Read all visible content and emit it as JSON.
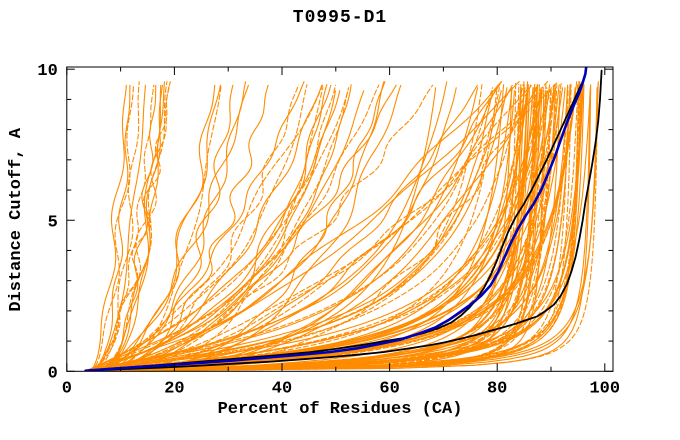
{
  "chart_data": {
    "type": "line",
    "title": "T0995-D1",
    "xlabel": "Percent of Residues (CA)",
    "ylabel": "Distance Cutoff, A",
    "xlim": [
      0,
      101.5
    ],
    "ylim": [
      0,
      10.07
    ],
    "x_ticks_major": [
      0,
      20,
      40,
      60,
      80,
      100
    ],
    "x_ticks_minor": [
      10,
      30,
      50,
      70,
      90
    ],
    "y_ticks_major": [
      0,
      5,
      10
    ],
    "y_ticks_minor": [
      1,
      2,
      3,
      4,
      6,
      7,
      8,
      9
    ],
    "grid": false,
    "legend": "none",
    "tick_style": "inside-mirrored",
    "colors": {
      "ensemble": "#ff8c00",
      "model_navy": "#0000bb",
      "model_black": "#000000",
      "axis": "#000000",
      "background": "#ffffff"
    },
    "series": [
      {
        "name": "highlighted-model-navy",
        "color": "#0000bb",
        "width": 2.6,
        "points": [
          [
            3.5,
            0.02
          ],
          [
            8,
            0.08
          ],
          [
            13,
            0.14
          ],
          [
            19,
            0.21
          ],
          [
            25,
            0.28
          ],
          [
            31,
            0.36
          ],
          [
            37,
            0.45
          ],
          [
            43,
            0.54
          ],
          [
            49,
            0.64
          ],
          [
            54,
            0.76
          ],
          [
            58,
            0.9
          ],
          [
            62,
            1.05
          ],
          [
            65.5,
            1.25
          ],
          [
            68.5,
            1.45
          ],
          [
            71,
            1.7
          ],
          [
            73,
            1.95
          ],
          [
            75,
            2.2
          ],
          [
            77,
            2.5
          ],
          [
            78.8,
            2.85
          ],
          [
            80.2,
            3.3
          ],
          [
            81.3,
            3.75
          ],
          [
            82.4,
            4.2
          ],
          [
            83.8,
            4.7
          ],
          [
            85.3,
            5.15
          ],
          [
            86.8,
            5.55
          ],
          [
            88.3,
            6.05
          ],
          [
            89.6,
            6.6
          ],
          [
            90.7,
            7.1
          ],
          [
            91.7,
            7.6
          ],
          [
            92.9,
            8.2
          ],
          [
            94.1,
            8.75
          ],
          [
            95.2,
            9.2
          ],
          [
            95.9,
            9.55
          ],
          [
            96.4,
            9.85
          ],
          [
            96.55,
            10.07
          ]
        ]
      },
      {
        "name": "highlighted-model-black-1",
        "color": "#000000",
        "width": 1.8,
        "points": [
          [
            3.5,
            0.02
          ],
          [
            9,
            0.1
          ],
          [
            15,
            0.18
          ],
          [
            21,
            0.26
          ],
          [
            27,
            0.35
          ],
          [
            33,
            0.44
          ],
          [
            39,
            0.53
          ],
          [
            45,
            0.63
          ],
          [
            50,
            0.74
          ],
          [
            54.5,
            0.86
          ],
          [
            58.5,
            0.98
          ],
          [
            62.5,
            1.1
          ],
          [
            66,
            1.25
          ],
          [
            69,
            1.42
          ],
          [
            71.5,
            1.62
          ],
          [
            73.3,
            1.85
          ],
          [
            74.8,
            2.1
          ],
          [
            76.2,
            2.4
          ],
          [
            77.5,
            2.75
          ],
          [
            78.7,
            3.15
          ],
          [
            79.8,
            3.6
          ],
          [
            80.9,
            4.1
          ],
          [
            82,
            4.6
          ],
          [
            83.4,
            5.1
          ],
          [
            85,
            5.55
          ],
          [
            86.4,
            6.0
          ],
          [
            87.8,
            6.5
          ],
          [
            89.2,
            7.0
          ],
          [
            90.5,
            7.5
          ],
          [
            91.8,
            8.0
          ],
          [
            93.2,
            8.55
          ],
          [
            94.5,
            9.05
          ],
          [
            95.5,
            9.45
          ],
          [
            96,
            9.62
          ]
        ]
      },
      {
        "name": "highlighted-model-black-2",
        "color": "#000000",
        "width": 1.8,
        "points": [
          [
            3.5,
            0.02
          ],
          [
            10,
            0.07
          ],
          [
            17,
            0.12
          ],
          [
            24,
            0.18
          ],
          [
            31,
            0.25
          ],
          [
            38,
            0.32
          ],
          [
            44,
            0.4
          ],
          [
            49,
            0.47
          ],
          [
            54,
            0.55
          ],
          [
            59,
            0.64
          ],
          [
            63,
            0.74
          ],
          [
            67,
            0.85
          ],
          [
            70,
            0.95
          ],
          [
            73,
            1.07
          ],
          [
            76,
            1.2
          ],
          [
            78.5,
            1.33
          ],
          [
            81,
            1.45
          ],
          [
            83.5,
            1.58
          ],
          [
            85.5,
            1.7
          ],
          [
            87.5,
            1.82
          ],
          [
            89,
            2.0
          ],
          [
            90.5,
            2.2
          ],
          [
            91.8,
            2.5
          ],
          [
            93,
            2.9
          ],
          [
            93.8,
            3.3
          ],
          [
            94.6,
            3.8
          ],
          [
            95.3,
            4.4
          ],
          [
            95.9,
            5.0
          ],
          [
            96.4,
            5.6
          ],
          [
            97,
            6.2
          ],
          [
            97.7,
            6.9
          ],
          [
            98.3,
            7.6
          ],
          [
            98.8,
            8.3
          ],
          [
            99.1,
            9.0
          ],
          [
            99.3,
            9.6
          ],
          [
            99.4,
            9.95
          ]
        ]
      }
    ],
    "ensemble": {
      "description": "orange spaghetti of all predicted model curves, approximated procedurally",
      "color": "#ff8c00",
      "line_width": 1.1,
      "seed": 7,
      "x_start_range": [
        3.2,
        4.6
      ],
      "y_top_max": 9.65,
      "dash_fraction": 0.45,
      "dash_pattern": "6 1.8",
      "groups": [
        {
          "shape": "fan",
          "count": 13,
          "x_top_range": [
            11,
            21
          ],
          "curve_power_range": [
            1.8,
            3.4
          ],
          "wave_amp_range": [
            0.4,
            1.2
          ]
        },
        {
          "shape": "fan",
          "count": 29,
          "x_top_range": [
            21,
            93
          ],
          "curve_power_range": [
            1.5,
            3.2
          ],
          "wave_amp_range": [
            0.4,
            1.6
          ]
        },
        {
          "shape": "saturating",
          "count": 12,
          "x_limit_range": [
            52,
            84
          ],
          "halfrise_range": [
            0.6,
            4.5
          ],
          "shape_power_range": [
            0.8,
            1.4
          ],
          "wave_amp_range": [
            0.2,
            0.9
          ]
        },
        {
          "shape": "saturating",
          "count": 90,
          "x_limit_range": [
            84,
            101.3
          ],
          "halfrise_log_range": [
            0.045,
            1.4
          ],
          "shape_power_range": [
            0.85,
            1.6
          ],
          "wave_amp_range": [
            0.1,
            0.6
          ]
        }
      ]
    }
  }
}
